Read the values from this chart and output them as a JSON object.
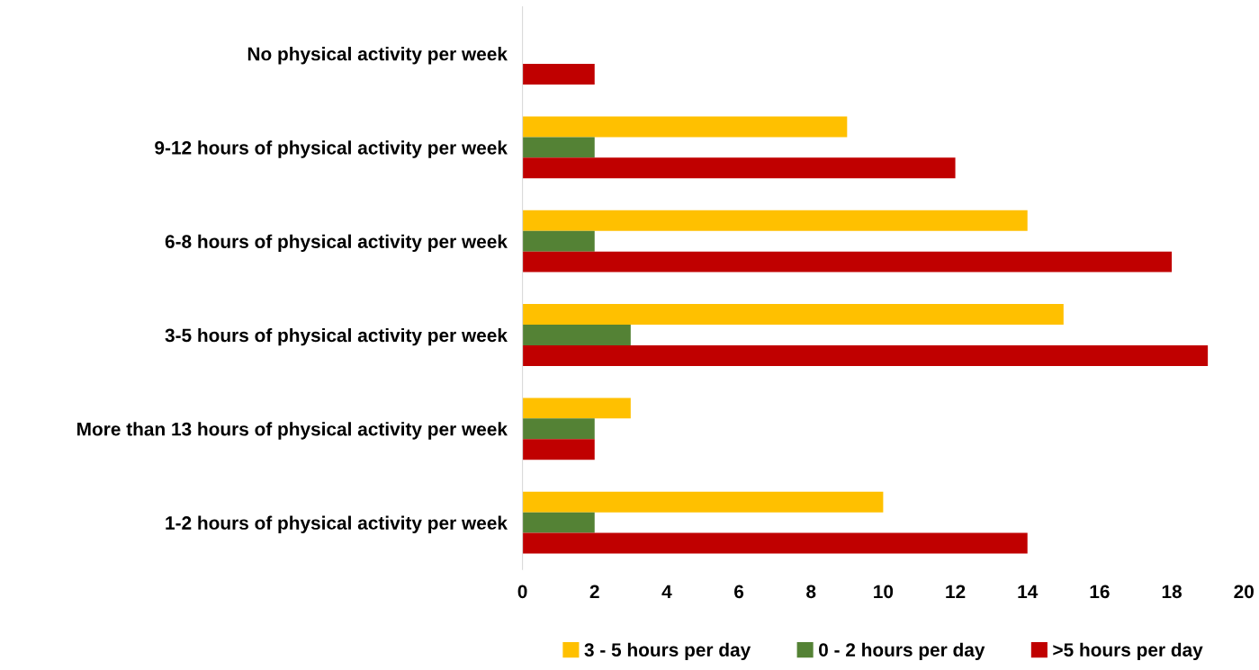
{
  "chart_data": {
    "type": "bar",
    "orientation": "horizontal",
    "categories": [
      "No physical activity per week",
      "9-12 hours of physical activity per week",
      "6-8 hours of physical activity per week",
      "3-5 hours of physical activity per week",
      "More than 13 hours of physical activity per week",
      "1-2 hours of physical activity per week"
    ],
    "series": [
      {
        "name": "3 - 5 hours per day",
        "color": "#ffc000",
        "values": [
          null,
          9,
          14,
          15,
          3,
          10
        ]
      },
      {
        "name": "0 - 2 hours per day",
        "color": "#548235",
        "values": [
          null,
          2,
          2,
          3,
          2,
          2
        ]
      },
      {
        "name": ">5 hours per day",
        "color": "#c00000",
        "values": [
          2,
          12,
          18,
          19,
          2,
          14
        ]
      }
    ],
    "xlim": [
      0,
      20
    ],
    "xticks": [
      0,
      2,
      4,
      6,
      8,
      10,
      12,
      14,
      16,
      18,
      20
    ],
    "grid": false,
    "legend": "bottom"
  }
}
